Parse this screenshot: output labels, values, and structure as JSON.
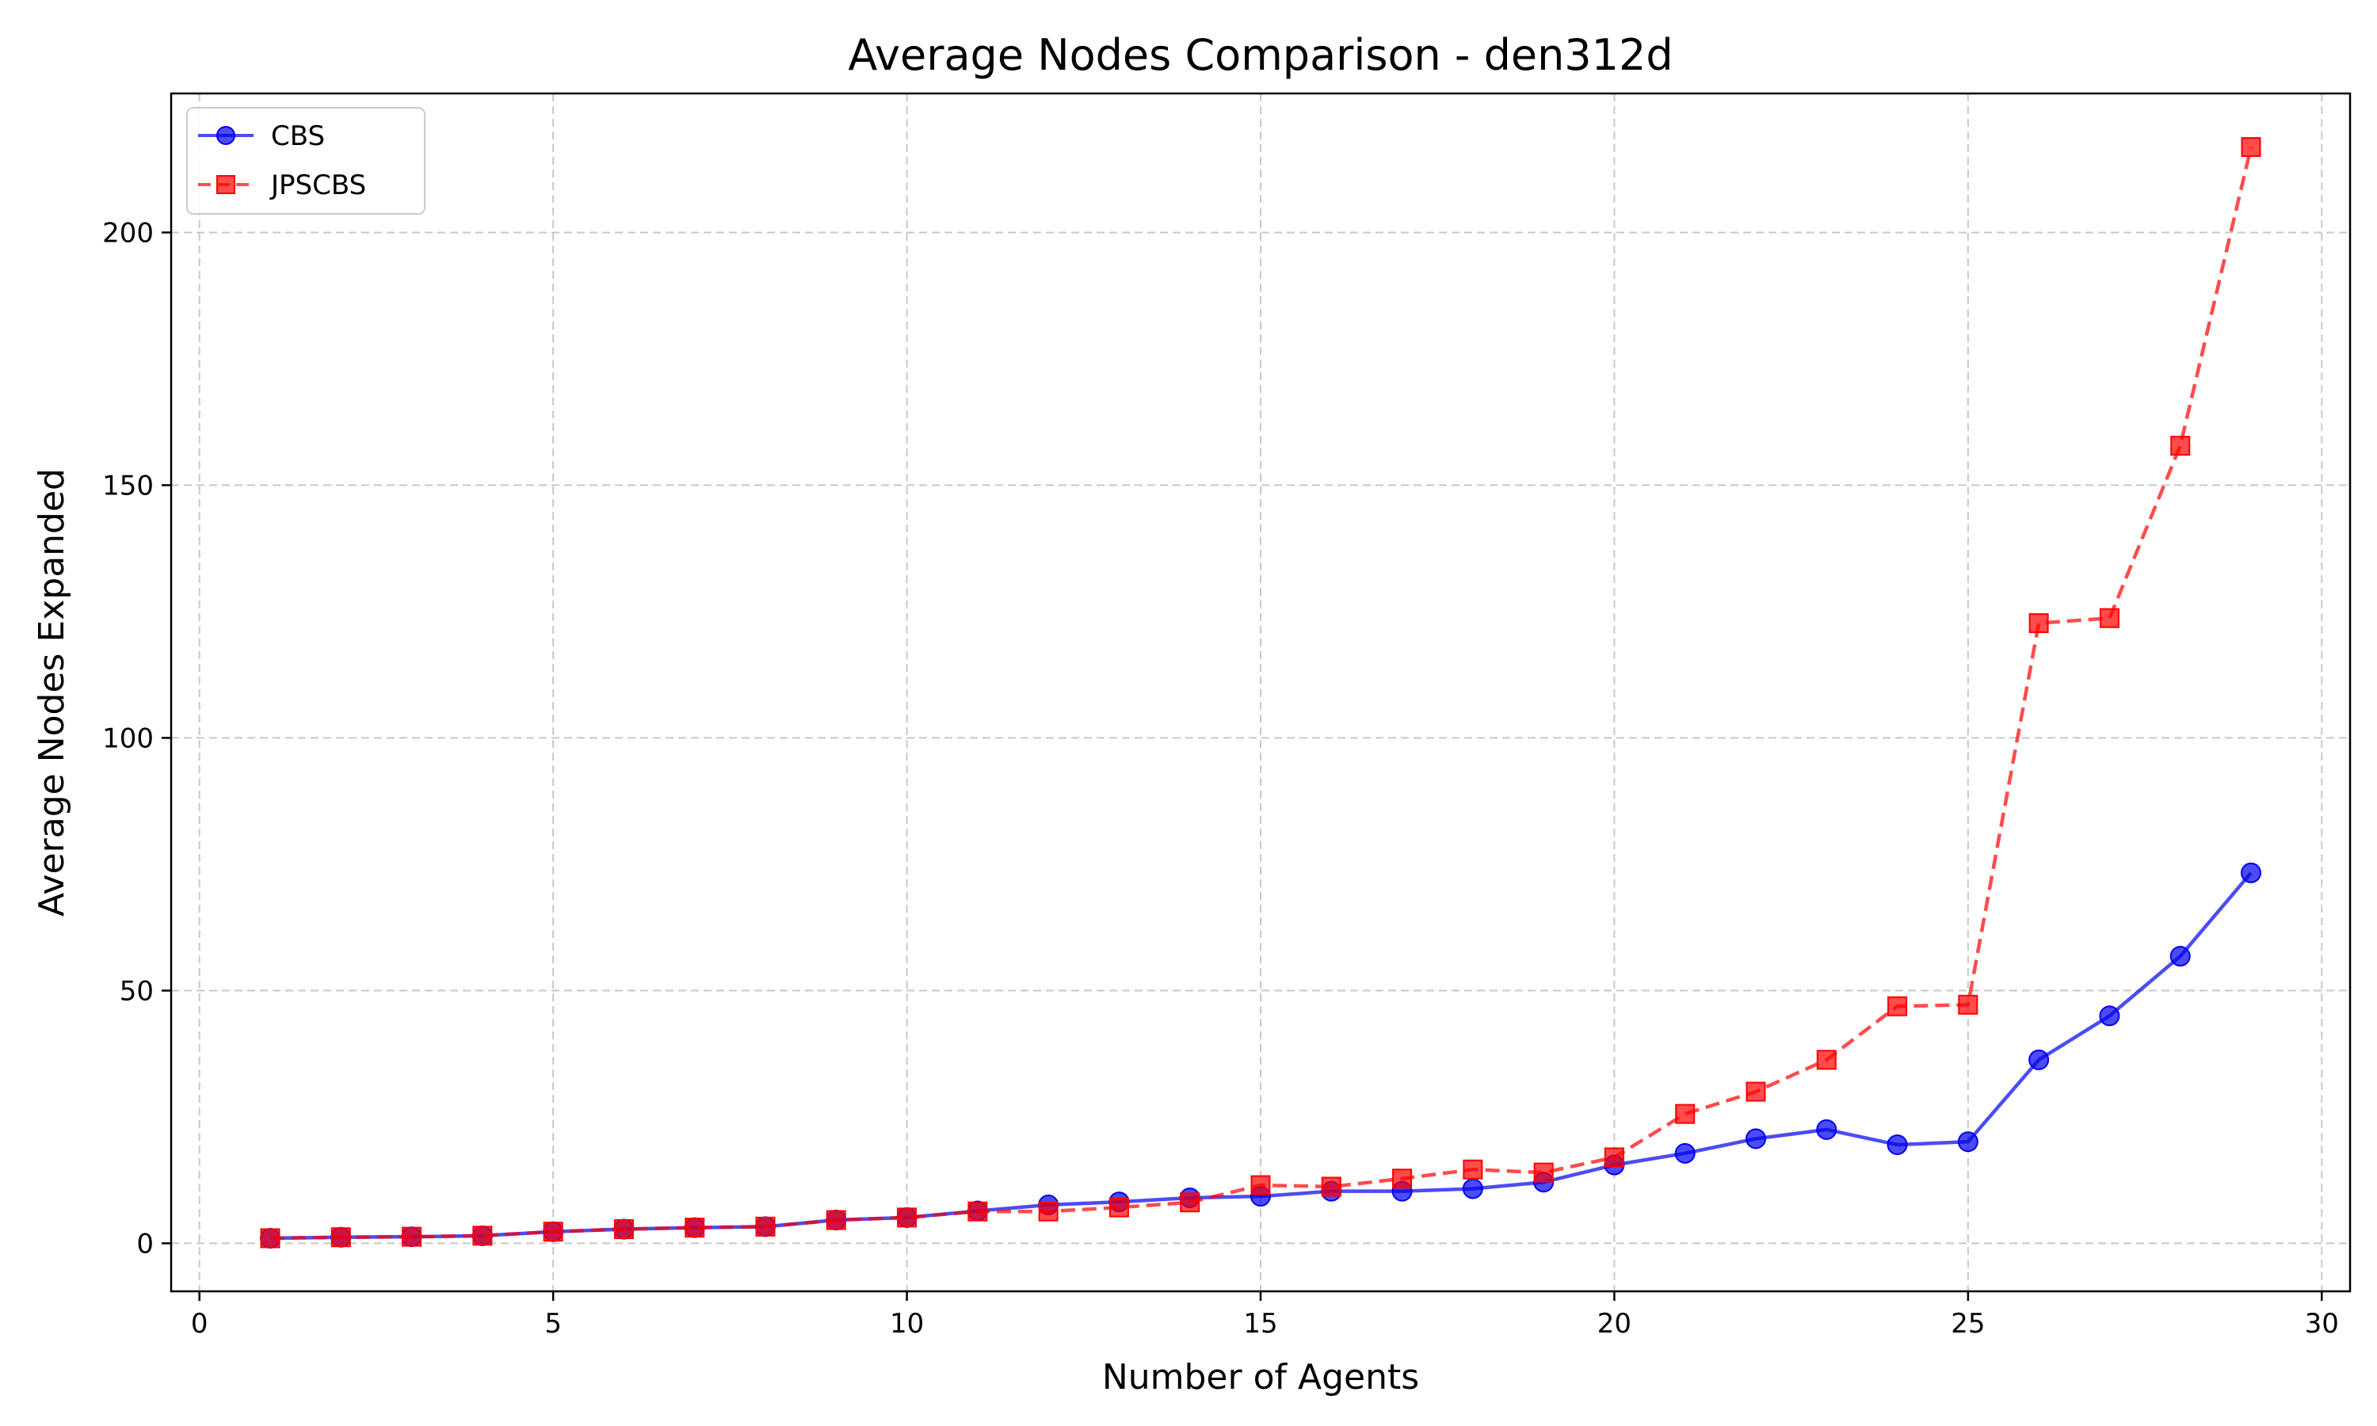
{
  "chart_data": {
    "type": "line",
    "title": "Average Nodes Comparison - den312d",
    "xlabel": "Number of Agents",
    "ylabel": "Average Nodes Expanded",
    "xlim": [
      -0.4,
      30.4
    ],
    "ylim": [
      -9.5,
      227.5
    ],
    "xticks": [
      0,
      5,
      10,
      15,
      20,
      25,
      30
    ],
    "yticks": [
      0,
      50,
      100,
      150,
      200
    ],
    "grid": true,
    "legend_position": "top-left",
    "x": [
      1,
      2,
      3,
      4,
      5,
      6,
      7,
      8,
      9,
      10,
      11,
      12,
      13,
      14,
      15,
      16,
      17,
      18,
      19,
      20,
      21,
      22,
      23,
      24,
      25,
      26,
      27,
      28,
      29
    ],
    "series": [
      {
        "name": "CBS",
        "color": "#0000ee",
        "marker": "circle",
        "linestyle": "solid",
        "values": [
          1.0,
          1.2,
          1.3,
          1.5,
          2.3,
          2.8,
          3.1,
          3.3,
          4.6,
          5.1,
          6.4,
          7.6,
          8.2,
          9.0,
          9.3,
          10.3,
          10.3,
          10.8,
          12.1,
          15.5,
          17.8,
          20.7,
          22.5,
          19.5,
          20.1,
          36.3,
          45.0,
          56.8,
          73.3
        ]
      },
      {
        "name": "JPSCBS",
        "color": "#ff0000",
        "marker": "square",
        "linestyle": "dashed",
        "values": [
          1.0,
          1.2,
          1.3,
          1.5,
          2.3,
          2.8,
          3.1,
          3.3,
          4.6,
          5.1,
          6.3,
          6.3,
          7.1,
          8.1,
          11.5,
          11.2,
          12.8,
          14.6,
          14.0,
          17.0,
          25.6,
          30.0,
          36.3,
          46.9,
          47.2,
          122.7,
          123.7,
          157.8,
          216.9
        ]
      }
    ]
  }
}
